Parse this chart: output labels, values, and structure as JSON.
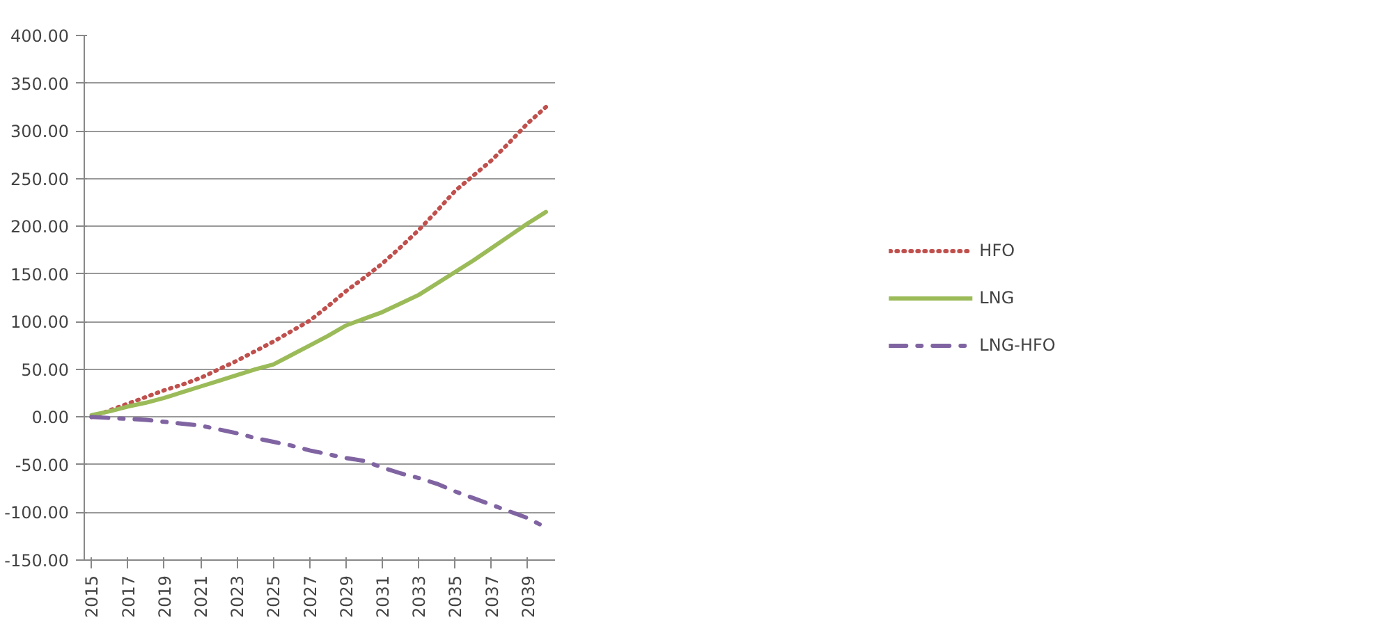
{
  "chart_data": {
    "type": "line",
    "x": [
      2015,
      2016,
      2017,
      2018,
      2019,
      2020,
      2021,
      2022,
      2023,
      2024,
      2025,
      2026,
      2027,
      2028,
      2029,
      2030,
      2031,
      2032,
      2033,
      2034,
      2035,
      2036,
      2037,
      2038,
      2039,
      2040
    ],
    "series": [
      {
        "name": "HFO",
        "color": "#c0504d",
        "line_style": "dotted",
        "values": [
          0,
          7,
          14,
          21,
          28,
          34,
          41,
          50,
          59,
          69,
          79,
          90,
          101,
          116,
          132,
          146,
          161,
          178,
          196,
          216,
          237,
          253,
          269,
          288,
          308,
          325
        ]
      },
      {
        "name": "LNG",
        "color": "#9bbb59",
        "line_style": "solid",
        "values": [
          2,
          6,
          11,
          15,
          20,
          26,
          32,
          38,
          44,
          50,
          55,
          65,
          75,
          85,
          96,
          103,
          110,
          119,
          128,
          140,
          152,
          164,
          177,
          190,
          203,
          215
        ]
      },
      {
        "name": "LNG-HFO",
        "color": "#8064a2",
        "line_style": "dashdot",
        "values": [
          0,
          -1,
          -2,
          -3,
          -5,
          -7,
          -9,
          -13,
          -17,
          -22,
          -26,
          -30,
          -35,
          -39,
          -43,
          -46,
          -53,
          -59,
          -64,
          -70,
          -78,
          -85,
          -92,
          -99,
          -106,
          -116
        ]
      }
    ],
    "xlim": [
      2014.6,
      2040.5
    ],
    "xticks": [
      2015,
      2017,
      2019,
      2021,
      2023,
      2025,
      2027,
      2029,
      2031,
      2033,
      2035,
      2037,
      2039
    ],
    "ylim": [
      -150,
      400
    ],
    "yticks": [
      {
        "value": -150,
        "label": "-150.00"
      },
      {
        "value": -100,
        "label": "-100.00"
      },
      {
        "value": -50,
        "label": "-50.00"
      },
      {
        "value": 0,
        "label": "0.00"
      },
      {
        "value": 50,
        "label": "50.00"
      },
      {
        "value": 100,
        "label": "100.00"
      },
      {
        "value": 150,
        "label": "150.00"
      },
      {
        "value": 200,
        "label": "200.00"
      },
      {
        "value": 250,
        "label": "250.00"
      },
      {
        "value": 300,
        "label": "300.00"
      },
      {
        "value": 350,
        "label": "350.00"
      },
      {
        "value": 400,
        "label": "400.00"
      }
    ],
    "grid": "y",
    "legend": "right"
  }
}
